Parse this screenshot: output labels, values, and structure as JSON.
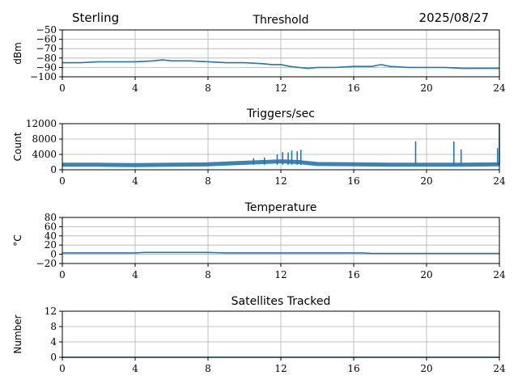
{
  "header": {
    "station": "Sterling",
    "date": "2025/08/27"
  },
  "chart_data": [
    {
      "type": "line",
      "title": "Threshold",
      "ylabel": "dBm",
      "xlim": [
        0,
        24
      ],
      "ylim": [
        -100,
        -50
      ],
      "xticks": [
        "0",
        "4",
        "8",
        "12",
        "16",
        "20",
        "24"
      ],
      "yticks": [
        "−50",
        "−60",
        "−70",
        "−80",
        "−90",
        "−100"
      ],
      "ytick_values": [
        -50,
        -60,
        -70,
        -80,
        -90,
        -100
      ],
      "grid": true,
      "color": "#1f77b4",
      "series": [
        {
          "x": [
            0,
            1,
            2,
            3,
            4,
            5,
            5.5,
            6,
            7,
            8,
            9,
            10,
            11,
            11.5,
            12,
            12.5,
            13,
            13.5,
            14,
            15,
            16,
            17,
            17.5,
            18,
            19,
            20,
            21,
            22,
            23,
            24
          ],
          "y": [
            -85,
            -85,
            -84,
            -84,
            -84,
            -83,
            -82,
            -83,
            -83,
            -84,
            -85,
            -85,
            -86,
            -87,
            -87,
            -89,
            -90,
            -91,
            -90,
            -90,
            -89,
            -89,
            -87,
            -89,
            -90,
            -90,
            -90,
            -91,
            -91,
            -91
          ]
        }
      ]
    },
    {
      "type": "line",
      "title": "Triggers/sec",
      "ylabel": "Count",
      "xlim": [
        0,
        24
      ],
      "ylim": [
        0,
        12000
      ],
      "xticks": [
        "0",
        "4",
        "8",
        "12",
        "16",
        "20",
        "24"
      ],
      "yticks": [
        "12000",
        "8000",
        "4000",
        "0"
      ],
      "ytick_values": [
        12000,
        8000,
        4000,
        0
      ],
      "grid": true,
      "color": "#1f77b4",
      "baseline": {
        "x": [
          0,
          2,
          4,
          6,
          8,
          10,
          11,
          12,
          13,
          14,
          16,
          18,
          20,
          22,
          24
        ],
        "y": [
          1300,
          1300,
          1200,
          1300,
          1400,
          1800,
          2000,
          2200,
          2000,
          1500,
          1400,
          1300,
          1300,
          1300,
          1400
        ]
      },
      "spikes": [
        {
          "x": 10.5,
          "y": 3000
        },
        {
          "x": 11.1,
          "y": 3200
        },
        {
          "x": 11.8,
          "y": 4000
        },
        {
          "x": 12.1,
          "y": 4600
        },
        {
          "x": 12.4,
          "y": 4500
        },
        {
          "x": 12.6,
          "y": 5000
        },
        {
          "x": 12.9,
          "y": 4800
        },
        {
          "x": 13.1,
          "y": 5200
        },
        {
          "x": 19.4,
          "y": 7400
        },
        {
          "x": 21.5,
          "y": 7400
        },
        {
          "x": 21.9,
          "y": 5300
        },
        {
          "x": 23.9,
          "y": 5600
        },
        {
          "x": 24,
          "y": 12000
        }
      ]
    },
    {
      "type": "line",
      "title": "Temperature",
      "ylabel": "°C",
      "xlim": [
        0,
        24
      ],
      "ylim": [
        -20,
        80
      ],
      "xticks": [
        "0",
        "4",
        "8",
        "12",
        "16",
        "20",
        "24"
      ],
      "yticks": [
        "80",
        "60",
        "40",
        "20",
        "0",
        "−20"
      ],
      "ytick_values": [
        80,
        60,
        40,
        20,
        0,
        -20
      ],
      "grid": true,
      "color": "#1f77b4",
      "series": [
        {
          "x": [
            0,
            4,
            4.5,
            8,
            9,
            12,
            16.5,
            17,
            24
          ],
          "y": [
            3,
            3,
            4,
            4,
            3,
            3,
            3,
            2,
            2
          ]
        }
      ]
    },
    {
      "type": "line",
      "title": "Satellites Tracked",
      "ylabel": "Number",
      "xlim": [
        0,
        24
      ],
      "ylim": [
        0,
        12
      ],
      "xticks": [
        "0",
        "4",
        "8",
        "12",
        "16",
        "20",
        "24"
      ],
      "yticks": [
        "12",
        "8",
        "4",
        "0"
      ],
      "ytick_values": [
        12,
        8,
        4,
        0
      ],
      "grid": true,
      "color": "#1f77b4",
      "series": [
        {
          "x": [
            0,
            24
          ],
          "y": [
            0,
            0
          ]
        }
      ]
    }
  ]
}
